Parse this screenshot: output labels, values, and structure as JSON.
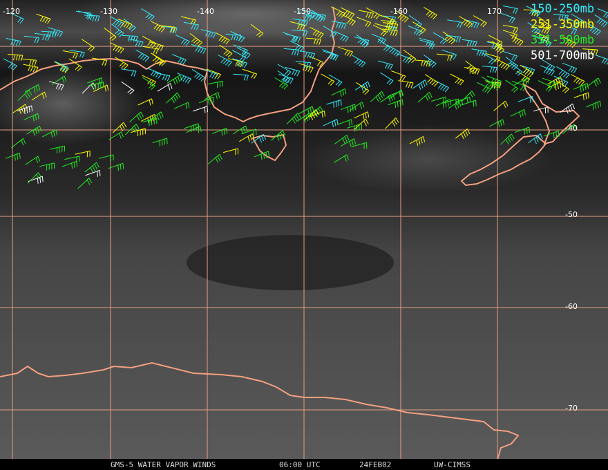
{
  "map": {
    "longitude_labels": [
      "-120",
      "-130",
      "-140",
      "-150",
      "-160",
      "170"
    ],
    "latitude_labels": [
      "-40",
      "-50",
      "-60",
      "-70"
    ]
  },
  "legend": [
    {
      "label": "150-250mb",
      "color": "#33eeff"
    },
    {
      "label": "251-350mb",
      "color": "#ffff00"
    },
    {
      "label": "351-500mb",
      "color": "#22ee22"
    },
    {
      "label": "501-700mb",
      "color": "#ffffff"
    }
  ],
  "footer": [
    "GMS-5 WATER VAPOR WINDS",
    "06:00 UTC",
    "24FEB02",
    "UW-CIMSS"
  ]
}
